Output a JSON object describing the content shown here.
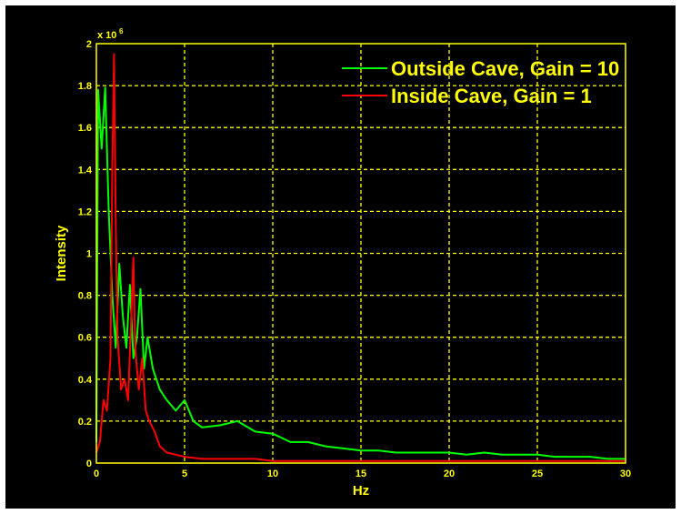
{
  "chart_data": {
    "type": "line",
    "xlabel": "Hz",
    "ylabel": "Intensity",
    "xlim": [
      0,
      30
    ],
    "ylim": [
      0,
      2
    ],
    "x_ticks": [
      "0",
      "5",
      "10",
      "15",
      "20",
      "25",
      "30"
    ],
    "y_ticks": [
      "0",
      "0.2",
      "0.4",
      "0.6",
      "0.8",
      "1",
      "1.2",
      "1.4",
      "1.6",
      "1.8",
      "2"
    ],
    "y_multiplier": "x 10",
    "y_multiplier_exponent": "6",
    "grid": true,
    "legend_position": "top-right",
    "colors": {
      "background": "#000000",
      "axes": "#ffff00",
      "grid": "#ffff00"
    },
    "series": [
      {
        "name": "Outside Cave, Gain = 10",
        "color": "#00ff00",
        "x": [
          0,
          0.1,
          0.3,
          0.5,
          0.7,
          0.9,
          1.1,
          1.3,
          1.5,
          1.7,
          1.9,
          2.1,
          2.3,
          2.5,
          2.7,
          2.9,
          3.2,
          3.6,
          4,
          4.5,
          5,
          5.5,
          6,
          7,
          8,
          9,
          10,
          11,
          12,
          13,
          14,
          15,
          16,
          17,
          18,
          19,
          20,
          21,
          22,
          23,
          24,
          25,
          26,
          27,
          28,
          29,
          30
        ],
        "values": [
          0.1,
          1.78,
          1.5,
          1.79,
          1.2,
          0.8,
          0.55,
          0.95,
          0.7,
          0.55,
          0.85,
          0.5,
          0.6,
          0.83,
          0.45,
          0.6,
          0.45,
          0.35,
          0.3,
          0.25,
          0.3,
          0.2,
          0.17,
          0.18,
          0.2,
          0.15,
          0.14,
          0.1,
          0.1,
          0.08,
          0.07,
          0.06,
          0.06,
          0.05,
          0.05,
          0.05,
          0.05,
          0.04,
          0.05,
          0.04,
          0.04,
          0.04,
          0.03,
          0.03,
          0.03,
          0.02,
          0.02
        ]
      },
      {
        "name": "Inside Cave, Gain = 1",
        "color": "#ff0000",
        "x": [
          0,
          0.2,
          0.4,
          0.6,
          0.8,
          0.9,
          1,
          1.1,
          1.2,
          1.4,
          1.6,
          1.8,
          2,
          2.1,
          2.2,
          2.4,
          2.6,
          2.8,
          3,
          3.3,
          3.6,
          4,
          4.5,
          5,
          6,
          7,
          8,
          9,
          10,
          11,
          12,
          14,
          16,
          18,
          20,
          22,
          24,
          26,
          28,
          30
        ],
        "values": [
          0.05,
          0.1,
          0.3,
          0.25,
          0.5,
          1.4,
          1.95,
          1.15,
          0.6,
          0.35,
          0.4,
          0.3,
          0.75,
          0.98,
          0.55,
          0.35,
          0.5,
          0.25,
          0.2,
          0.15,
          0.08,
          0.05,
          0.04,
          0.03,
          0.02,
          0.02,
          0.02,
          0.02,
          0.01,
          0.01,
          0.01,
          0.01,
          0.01,
          0.01,
          0.01,
          0.01,
          0.01,
          0.01,
          0.01,
          0.01
        ]
      }
    ]
  }
}
